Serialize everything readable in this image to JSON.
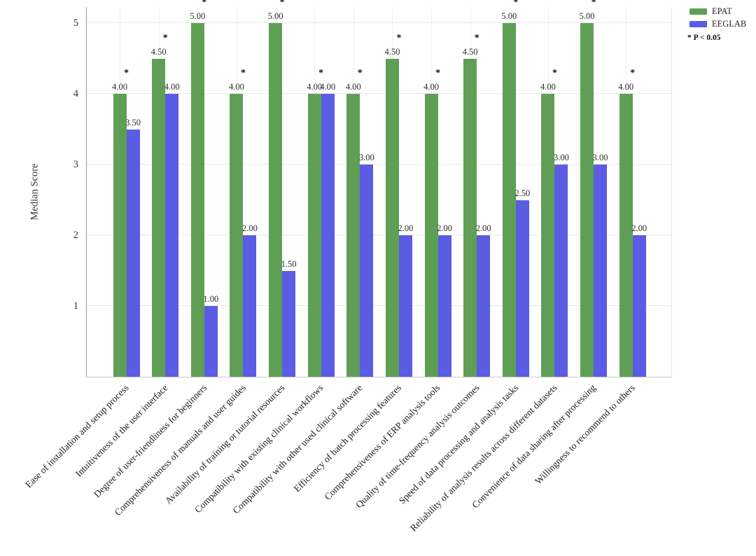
{
  "figure": {
    "background": "#ffffff"
  },
  "chart_data": {
    "type": "bar",
    "title": "",
    "xlabel": "",
    "ylabel": "Median Score",
    "ylim": [
      0,
      5.23
    ],
    "yticks": [
      1,
      2,
      3,
      4,
      5
    ],
    "grid": true,
    "legend_position": "top-right",
    "categories": [
      "Ease of installation and setup process",
      "Intuitiveness of the user interface",
      "Degree of user-friendliness for beginners",
      "Comprehensiveness of manuals and user guides",
      "Availability of training or tutorial resources",
      "Compatibility with existing clinical workflows",
      "Compatibility with other  used clinical software",
      "Efficiency of batch processing features",
      "Comprehensiveness of ERP analysis tools",
      "Quality of time-frequency analysis outcomes",
      "Speed of data processing and analysis tasks",
      "Reliability of analysis results across different datasets",
      "Convenience of data sharing after processing",
      "Willingness to recommend to others"
    ],
    "series": [
      {
        "name": "EPAT",
        "color": "#5f9f55",
        "values": [
          4.0,
          4.5,
          5.0,
          4.0,
          5.0,
          4.0,
          4.0,
          4.5,
          4.0,
          4.5,
          5.0,
          4.0,
          5.0,
          4.0
        ]
      },
      {
        "name": "EEGLAB",
        "color": "#5a5ce4",
        "values": [
          3.5,
          4.0,
          1.0,
          2.0,
          1.5,
          4.0,
          3.0,
          2.0,
          2.0,
          2.0,
          2.5,
          3.0,
          3.0,
          2.0
        ]
      }
    ],
    "significant": [
      true,
      true,
      true,
      true,
      true,
      true,
      true,
      true,
      true,
      true,
      true,
      true,
      true,
      true
    ],
    "significance_marker": "*",
    "significance_note": "* P < 0.05",
    "value_label_decimals": 2
  }
}
